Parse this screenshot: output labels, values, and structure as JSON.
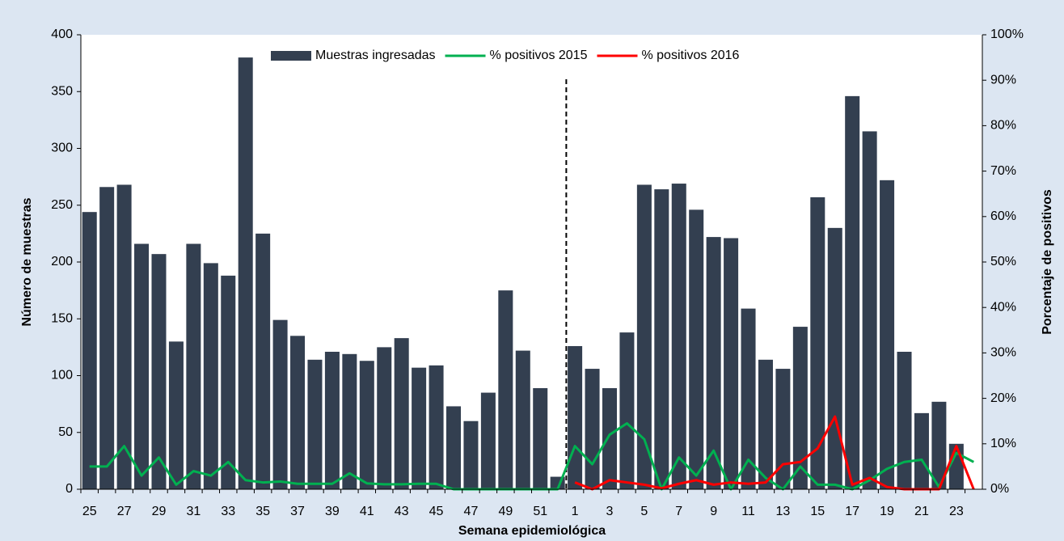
{
  "chart_data": {
    "type": "bar",
    "x_label": "Semana epidemiológica",
    "y_label": "Número de muestras",
    "y2_label": "Porcentaje de positivos",
    "legend": "top",
    "categories": [
      "25",
      null,
      "27",
      null,
      "29",
      null,
      "31",
      null,
      "33",
      null,
      "35",
      null,
      "37",
      null,
      "39",
      null,
      "41",
      null,
      "43",
      null,
      "45",
      null,
      "47",
      null,
      "49",
      null,
      "51",
      null,
      "1",
      null,
      "3",
      null,
      "5",
      null,
      "7",
      null,
      "9",
      null,
      "11",
      null,
      "13",
      null,
      "15",
      null,
      "17",
      null,
      "19",
      null,
      "21",
      null,
      "23",
      null
    ],
    "series": [
      {
        "name": "Muestras ingresadas",
        "type": "bar",
        "color": "#333f50",
        "values": [
          244,
          266,
          268,
          216,
          207,
          130,
          216,
          199,
          188,
          380,
          225,
          149,
          135,
          114,
          121,
          119,
          113,
          125,
          133,
          107,
          109,
          73,
          60,
          85,
          175,
          122,
          89,
          11,
          126,
          106,
          89,
          138,
          268,
          264,
          269,
          246,
          222,
          221,
          159,
          114,
          106,
          143,
          257,
          230,
          346,
          315,
          272,
          121,
          67,
          77,
          40,
          null
        ]
      },
      {
        "name": "% positivos 2015",
        "type": "line",
        "axis": "y2",
        "color": "#00b050",
        "values": [
          5,
          5,
          9.5,
          3,
          7,
          1,
          4,
          3,
          6,
          2,
          1.5,
          1.7,
          1.2,
          1.2,
          1.2,
          3.5,
          1.3,
          1.1,
          1.1,
          1.2,
          1.2,
          0,
          0,
          0,
          0,
          0,
          0,
          0,
          9.5,
          5.5,
          12,
          14.5,
          11,
          0,
          7,
          3,
          8.5,
          0,
          6.5,
          2.5,
          0,
          5,
          1,
          1,
          0,
          2,
          4.5,
          6,
          6.5,
          0.5,
          8,
          6
        ]
      },
      {
        "name": "% positivos 2016",
        "type": "line",
        "axis": "y2",
        "color": "#ff0000",
        "values": [
          null,
          null,
          null,
          null,
          null,
          null,
          null,
          null,
          null,
          null,
          null,
          null,
          null,
          null,
          null,
          null,
          null,
          null,
          null,
          null,
          null,
          null,
          null,
          null,
          null,
          null,
          null,
          null,
          1.5,
          0,
          2,
          1.5,
          1,
          0.2,
          1.2,
          2,
          1,
          1.5,
          1.2,
          1.5,
          5.5,
          6,
          9,
          16,
          1,
          2.5,
          0.5,
          0,
          0,
          0,
          9.5,
          0
        ]
      }
    ],
    "ylim": [
      0,
      400
    ],
    "yticks": [
      0,
      50,
      100,
      150,
      200,
      250,
      300,
      350,
      400
    ],
    "y2lim": [
      0,
      100
    ],
    "y2ticks": [
      {
        "value": 0,
        "label": "0%"
      },
      {
        "value": 10,
        "label": "10%"
      },
      {
        "value": 20,
        "label": "20%"
      },
      {
        "value": 30,
        "label": "30%"
      },
      {
        "value": 40,
        "label": "40%"
      },
      {
        "value": 50,
        "label": "50%"
      },
      {
        "value": 60,
        "label": "60%"
      },
      {
        "value": 70,
        "label": "70%"
      },
      {
        "value": 80,
        "label": "80%"
      },
      {
        "value": 90,
        "label": "90%"
      },
      {
        "value": 100,
        "label": "100%"
      }
    ]
  }
}
